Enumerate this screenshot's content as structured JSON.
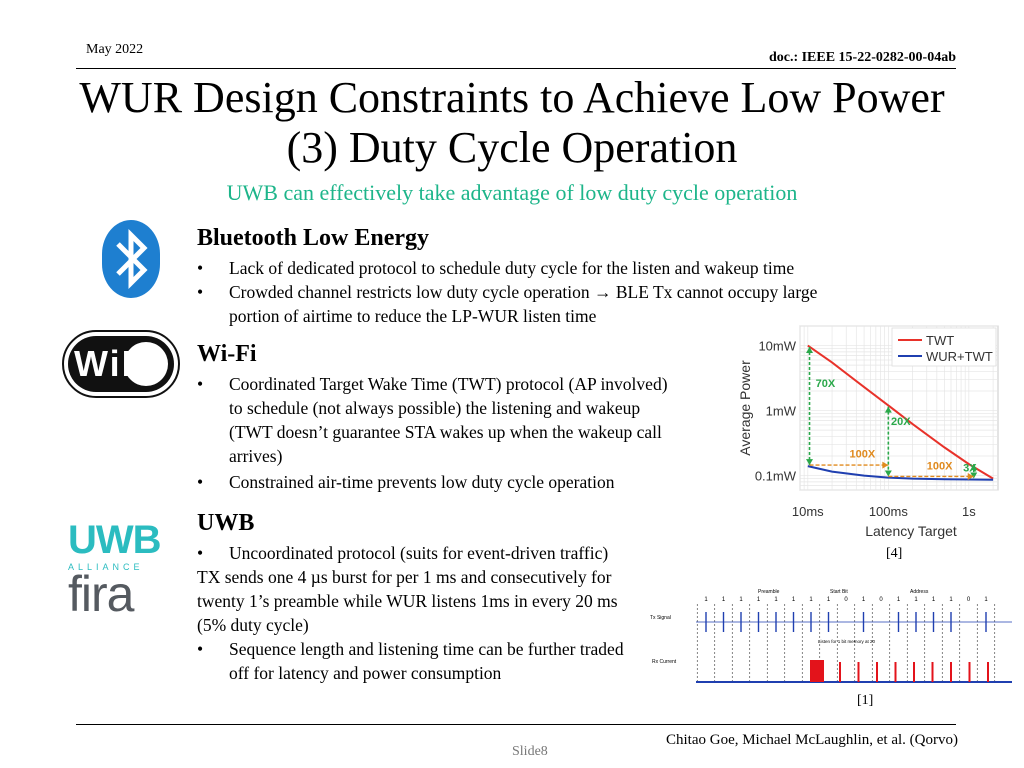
{
  "header": {
    "date": "May 2022",
    "doc": "doc.: IEEE 15-22-0282-00-04ab"
  },
  "title": {
    "line1": "WUR Design Constraints to Achieve Low Power",
    "line2": "(3) Duty Cycle Operation",
    "subtitle": "UWB can effectively take advantage of low duty cycle operation"
  },
  "bullet": "•",
  "ble": {
    "heading": "Bluetooth Low Energy",
    "b1": "Lack of dedicated protocol to schedule duty cycle for the listen and wakeup time",
    "b2_line1": "Crowded channel restricts low duty cycle operation → BLE Tx cannot occupy large",
    "b2_line2": "portion of airtime to reduce the LP-WUR listen time"
  },
  "wifi": {
    "heading": "Wi-Fi",
    "logo_text": "WiFi",
    "b1_l1": "Coordinated Target Wake Time (TWT) protocol (AP involved)",
    "b1_l2": "to schedule (not always possible) the listening and wakeup",
    "b1_l3": "(TWT doesn’t guarantee STA wakes up when the wakeup call",
    "b1_l4": "arrives)",
    "b2": "Constrained air-time prevents low duty cycle operation"
  },
  "uwb": {
    "heading": "UWB",
    "logo_uwb": "UWB",
    "logo_alliance": "ALLIANCE",
    "logo_fira": "fira",
    "b1": "Uncoordinated protocol (suits for event-driven traffic)",
    "p_l1": "TX sends one 4 µs burst for per 1 ms and consecutively for",
    "p_l2": "twenty 1’s preamble while WUR listens 1ms in every 20 ms",
    "p_l3": "(5% duty cycle)",
    "b2_l1": "Sequence length and listening time can be further traded",
    "b2_l2": "off  for latency and power consumption"
  },
  "colors": {
    "accent_green": "#1db58a",
    "ble_blue": "#1e7fd0",
    "twt_red": "#e8322a",
    "wur_blue": "#1f3fb0",
    "uwb_teal": "#2bbcc0",
    "fira_gray": "#555a60",
    "annot_green": "#2aa84a",
    "annot_orange": "#e08a1e"
  },
  "chart_data": {
    "type": "line",
    "xscale": "log",
    "yscale": "log",
    "x_ticks": [
      "10ms",
      "100ms",
      "1s"
    ],
    "y_ticks": [
      "10mW",
      "1mW",
      "0.1mW"
    ],
    "xlabel": "Latency Target",
    "ylabel": "Average Power",
    "legend_position": "top-right",
    "grid": true,
    "series": [
      {
        "name": "TWT",
        "color": "#e8322a",
        "x": [
          0.01,
          0.02,
          0.05,
          0.1,
          0.2,
          0.5,
          1,
          2
        ],
        "y": [
          10,
          5.5,
          2.3,
          1.2,
          0.62,
          0.27,
          0.15,
          0.09
        ]
      },
      {
        "name": "WUR+TWT",
        "color": "#1f3fb0",
        "x": [
          0.01,
          0.02,
          0.05,
          0.1,
          0.2,
          0.5,
          1,
          2
        ],
        "y": [
          0.14,
          0.115,
          0.1,
          0.093,
          0.09,
          0.088,
          0.087,
          0.086
        ]
      }
    ],
    "annotations": [
      "70X",
      "20X",
      "100X",
      "100X",
      "3X"
    ],
    "reference": "[4]"
  },
  "timing": {
    "labels": {
      "preamble": "Preamble",
      "start_bit": "Start Bit",
      "address": "Address",
      "tx": "Tx Signal",
      "rx": "Rx Current",
      "listen": "Listen for 1 bit memory  at 20"
    },
    "bits": [
      "1",
      "1",
      "1",
      "1",
      "1",
      "1",
      "1",
      "1",
      "0",
      "1",
      "0",
      "1",
      "1",
      "1",
      "1",
      "0",
      "1"
    ],
    "reference": "[1]"
  },
  "footer": {
    "authors": "Chitao Goe, Michael McLaughlin, et al. (Qorvo)",
    "slide": "Slide8"
  }
}
